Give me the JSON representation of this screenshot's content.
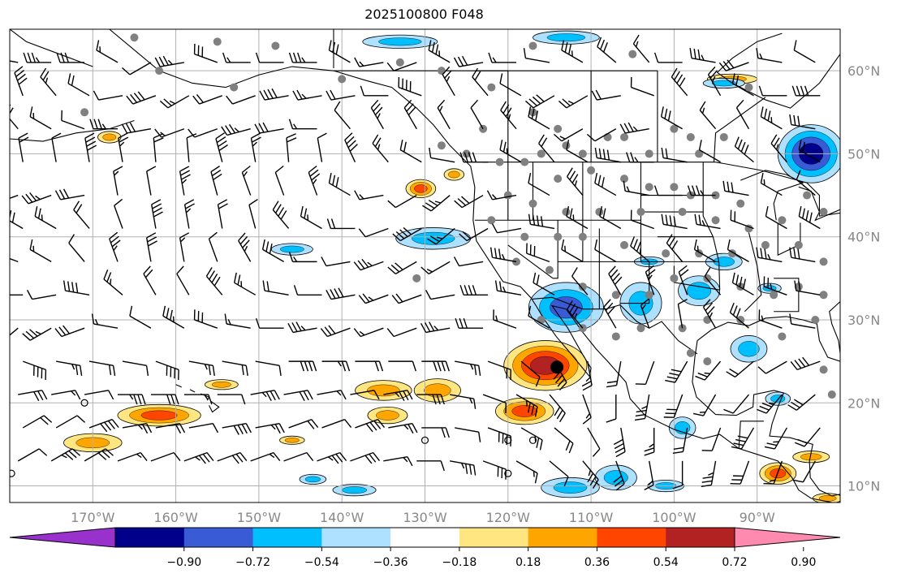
{
  "title": "2025100800 F048",
  "map": {
    "lon_min": -180,
    "lon_max": -80,
    "lat_min": 8,
    "lat_max": 65,
    "lon_ticks": [
      {
        "value": -170,
        "label": "170°W"
      },
      {
        "value": -160,
        "label": "160°W"
      },
      {
        "value": -150,
        "label": "150°W"
      },
      {
        "value": -140,
        "label": "140°W"
      },
      {
        "value": -130,
        "label": "130°W"
      },
      {
        "value": -120,
        "label": "120°W"
      },
      {
        "value": -110,
        "label": "110°W"
      },
      {
        "value": -100,
        "label": "100°W"
      },
      {
        "value": -90,
        "label": "90°W"
      }
    ],
    "lat_ticks": [
      {
        "value": 60,
        "label": "60°N"
      },
      {
        "value": 50,
        "label": "50°N"
      },
      {
        "value": 40,
        "label": "40°N"
      },
      {
        "value": 30,
        "label": "30°N"
      },
      {
        "value": 20,
        "label": "20°N"
      },
      {
        "value": 10,
        "label": "10°N"
      }
    ],
    "grid": true,
    "tick_label_color": "#888888"
  },
  "colorbar": {
    "colors": [
      "#9932cc",
      "#00008b",
      "#3a5bd6",
      "#00bfff",
      "#aee0ff",
      "#ffffff",
      "#ffe680",
      "#ffa500",
      "#ff4500",
      "#b22222",
      "#ff8ab0"
    ],
    "labels": [
      "−0.90",
      "−0.72",
      "−0.54",
      "−0.36",
      "−0.18",
      "0.18",
      "0.36",
      "0.54",
      "0.72",
      "0.90"
    ],
    "extend": "both"
  },
  "chart_data": {
    "type": "map",
    "positive_regions": [
      {
        "lon": -115.5,
        "lat": 24.5,
        "rx": 5,
        "ry": 3,
        "level": 0.72
      },
      {
        "lon": -118,
        "lat": 19,
        "rx": 3.5,
        "ry": 1.6,
        "level": 0.54
      },
      {
        "lon": -128.5,
        "lat": 21.5,
        "rx": 2.8,
        "ry": 1.4,
        "level": 0.36
      },
      {
        "lon": -135,
        "lat": 21.5,
        "rx": 3.4,
        "ry": 1.2,
        "level": 0.36
      },
      {
        "lon": -134.5,
        "lat": 18.5,
        "rx": 2.4,
        "ry": 1.0,
        "level": 0.36
      },
      {
        "lon": -162,
        "lat": 18.5,
        "rx": 5,
        "ry": 1.3,
        "level": 0.54
      },
      {
        "lon": -170,
        "lat": 15.2,
        "rx": 3.5,
        "ry": 1.1,
        "level": 0.36
      },
      {
        "lon": -154.5,
        "lat": 22.2,
        "rx": 2,
        "ry": 0.6,
        "level": 0.36
      },
      {
        "lon": -130.5,
        "lat": 45.8,
        "rx": 1.8,
        "ry": 1.1,
        "level": 0.54
      },
      {
        "lon": -126.5,
        "lat": 47.5,
        "rx": 1.2,
        "ry": 0.7,
        "level": 0.36
      },
      {
        "lon": -168,
        "lat": 52,
        "rx": 1.4,
        "ry": 0.7,
        "level": 0.36
      },
      {
        "lon": -146,
        "lat": 15.5,
        "rx": 1.5,
        "ry": 0.5,
        "level": 0.36
      },
      {
        "lon": -87.5,
        "lat": 11.5,
        "rx": 2.2,
        "ry": 1.3,
        "level": 0.54
      },
      {
        "lon": -93,
        "lat": 59,
        "rx": 3,
        "ry": 0.6,
        "level": 0.36
      },
      {
        "lon": -81.5,
        "lat": 8.5,
        "rx": 1.8,
        "ry": 0.6,
        "level": 0.36
      },
      {
        "lon": -83.5,
        "lat": 13.5,
        "rx": 2.2,
        "ry": 0.7,
        "level": 0.36
      }
    ],
    "negative_regions": [
      {
        "lon": -113,
        "lat": 31.5,
        "rx": 4.5,
        "ry": 3,
        "level": -0.54
      },
      {
        "lon": -104,
        "lat": 32,
        "rx": 2.5,
        "ry": 2.5,
        "level": -0.36
      },
      {
        "lon": -97,
        "lat": 33.5,
        "rx": 2.5,
        "ry": 1.8,
        "level": -0.36
      },
      {
        "lon": -91,
        "lat": 26.5,
        "rx": 2.2,
        "ry": 1.6,
        "level": -0.36
      },
      {
        "lon": -87.5,
        "lat": 20.5,
        "rx": 1.5,
        "ry": 0.8,
        "level": -0.36
      },
      {
        "lon": -83.5,
        "lat": 50,
        "rx": 4,
        "ry": 3.5,
        "level": -0.72
      },
      {
        "lon": -129,
        "lat": 39.8,
        "rx": 4.5,
        "ry": 1.3,
        "level": -0.36
      },
      {
        "lon": -146,
        "lat": 38.5,
        "rx": 2.5,
        "ry": 0.7,
        "level": -0.36
      },
      {
        "lon": -133,
        "lat": 63.5,
        "rx": 4.5,
        "ry": 0.8,
        "level": -0.36
      },
      {
        "lon": -113,
        "lat": 64,
        "rx": 4,
        "ry": 0.8,
        "level": -0.36
      },
      {
        "lon": -112.5,
        "lat": 9.8,
        "rx": 3.5,
        "ry": 1.2,
        "level": -0.36
      },
      {
        "lon": -107,
        "lat": 11,
        "rx": 2.5,
        "ry": 1.5,
        "level": -0.36
      },
      {
        "lon": -101,
        "lat": 10,
        "rx": 2.2,
        "ry": 0.7,
        "level": -0.36
      },
      {
        "lon": -138.5,
        "lat": 9.5,
        "rx": 2.6,
        "ry": 0.7,
        "level": -0.36
      },
      {
        "lon": -143.5,
        "lat": 10.8,
        "rx": 1.6,
        "ry": 0.6,
        "level": -0.36
      },
      {
        "lon": -94,
        "lat": 58.5,
        "rx": 2.5,
        "ry": 0.6,
        "level": -0.36
      },
      {
        "lon": -94,
        "lat": 37,
        "rx": 2.2,
        "ry": 1.0,
        "level": -0.36
      },
      {
        "lon": -99,
        "lat": 17,
        "rx": 1.6,
        "ry": 1.3,
        "level": -0.36
      },
      {
        "lon": -103,
        "lat": 37,
        "rx": 1.8,
        "ry": 0.6,
        "level": -0.36
      },
      {
        "lon": -88.5,
        "lat": 33.8,
        "rx": 1.4,
        "ry": 0.6,
        "level": -0.36
      }
    ],
    "station_markers": [
      [
        -165,
        64
      ],
      [
        -171,
        55
      ],
      [
        -162,
        60
      ],
      [
        -155,
        63.5
      ],
      [
        -148,
        63
      ],
      [
        -153,
        58
      ],
      [
        -140,
        59
      ],
      [
        -133,
        61
      ],
      [
        -128,
        60
      ],
      [
        -122,
        58
      ],
      [
        -117,
        63
      ],
      [
        -105,
        62
      ],
      [
        -123,
        53
      ],
      [
        -117,
        55
      ],
      [
        -114,
        53
      ],
      [
        -113,
        51
      ],
      [
        -111,
        50
      ],
      [
        -108,
        52
      ],
      [
        -106,
        52
      ],
      [
        -103,
        50
      ],
      [
        -100,
        53
      ],
      [
        -98,
        52
      ],
      [
        -97,
        50
      ],
      [
        -94,
        52
      ],
      [
        -91,
        58
      ],
      [
        -125,
        50
      ],
      [
        -128,
        51
      ],
      [
        -121,
        49
      ],
      [
        -118,
        49
      ],
      [
        -116,
        50
      ],
      [
        -114,
        47
      ],
      [
        -110,
        48
      ],
      [
        -106,
        47
      ],
      [
        -103,
        46
      ],
      [
        -100,
        46
      ],
      [
        -98,
        45
      ],
      [
        -95,
        45
      ],
      [
        -92,
        44
      ],
      [
        -120,
        45
      ],
      [
        -117,
        44
      ],
      [
        -113,
        43
      ],
      [
        -109,
        43
      ],
      [
        -104,
        43
      ],
      [
        -99,
        43
      ],
      [
        -95,
        42
      ],
      [
        -91,
        41
      ],
      [
        -87,
        42
      ],
      [
        -84,
        45
      ],
      [
        -82,
        43
      ],
      [
        -122,
        42
      ],
      [
        -118,
        40
      ],
      [
        -114,
        40
      ],
      [
        -111,
        40
      ],
      [
        -106,
        39
      ],
      [
        -101,
        38
      ],
      [
        -97,
        38
      ],
      [
        -93,
        38
      ],
      [
        -89,
        39
      ],
      [
        -85,
        39
      ],
      [
        -82,
        37
      ],
      [
        -119,
        37
      ],
      [
        -115,
        36
      ],
      [
        -111,
        34
      ],
      [
        -107,
        33
      ],
      [
        -103,
        33
      ],
      [
        -100,
        35
      ],
      [
        -96,
        35
      ],
      [
        -92,
        34
      ],
      [
        -88,
        33
      ],
      [
        -85,
        34
      ],
      [
        -82,
        33
      ],
      [
        -116,
        30
      ],
      [
        -111,
        29
      ],
      [
        -107,
        28
      ],
      [
        -104,
        29
      ],
      [
        -99,
        29
      ],
      [
        -96,
        30
      ],
      [
        -92,
        30
      ],
      [
        -87,
        28
      ],
      [
        -83,
        30
      ],
      [
        -98,
        26
      ],
      [
        -96,
        25
      ],
      [
        -82,
        24
      ],
      [
        -81,
        21
      ],
      [
        -131,
        35
      ]
    ],
    "wind_barbs": {
      "lon_start": -179,
      "lon_step": 4,
      "lat_start": 61,
      "lat_step": 4,
      "rows": [
        [
          280,
          270,
          270,
          300,
          240,
          260,
          290,
          270,
          270,
          270,
          300,
          260,
          250,
          300,
          260,
          270,
          280,
          300,
          310,
          320,
          270,
          280,
          250,
          280,
          300
        ],
        [
          340,
          320,
          300,
          260,
          250,
          240,
          250,
          250,
          260,
          260,
          260,
          270,
          290,
          330,
          320,
          300,
          240,
          240,
          260,
          290,
          320,
          330,
          300,
          270,
          270
        ],
        [
          320,
          300,
          290,
          270,
          260,
          250,
          250,
          255,
          260,
          270,
          320,
          330,
          330,
          330,
          330,
          320,
          300,
          240,
          240,
          260,
          300,
          320,
          330,
          300,
          280
        ],
        [
          350,
          350,
          350,
          350,
          355,
          355,
          345,
          350,
          355,
          350,
          335,
          320,
          300,
          280,
          270,
          300,
          320,
          300,
          280,
          270,
          280,
          300,
          310,
          320,
          300
        ],
        [
          250,
          250,
          260,
          350,
          350,
          350,
          345,
          340,
          340,
          340,
          300,
          260,
          240,
          230,
          240,
          260,
          300,
          320,
          300,
          280,
          270,
          270,
          280,
          300,
          310
        ],
        [
          300,
          300,
          320,
          340,
          350,
          350,
          350,
          345,
          320,
          300,
          270,
          250,
          240,
          230,
          240,
          260,
          280,
          300,
          300,
          290,
          280,
          280,
          290,
          300,
          300
        ],
        [
          290,
          300,
          320,
          340,
          350,
          350,
          340,
          330,
          300,
          270,
          260,
          250,
          240,
          240,
          260,
          280,
          290,
          300,
          300,
          310,
          320,
          300,
          300,
          280,
          280
        ],
        [
          270,
          260,
          280,
          310,
          330,
          330,
          320,
          300,
          280,
          270,
          260,
          250,
          250,
          260,
          270,
          280,
          300,
          320,
          330,
          340,
          340,
          320,
          300,
          290,
          280
        ],
        [
          230,
          240,
          250,
          280,
          300,
          300,
          290,
          280,
          270,
          260,
          250,
          250,
          250,
          260,
          270,
          290,
          300,
          320,
          330,
          340,
          350,
          330,
          310,
          290,
          280
        ],
        [
          110,
          100,
          100,
          100,
          110,
          100,
          100,
          100,
          90,
          90,
          90,
          90,
          90,
          100,
          110,
          130,
          150,
          170,
          190,
          200,
          210,
          220,
          230,
          240,
          250
        ],
        [
          80,
          80,
          80,
          90,
          90,
          90,
          90,
          80,
          80,
          80,
          80,
          80,
          90,
          100,
          110,
          120,
          140,
          160,
          180,
          190,
          200,
          210,
          220,
          220,
          230
        ],
        [
          60,
          60,
          70,
          80,
          80,
          80,
          80,
          80,
          70,
          70,
          70,
          80,
          90,
          100,
          110,
          120,
          130,
          150,
          170,
          180,
          190,
          200,
          210,
          210,
          220
        ],
        [
          60,
          60,
          60,
          70,
          70,
          70,
          70,
          70,
          70,
          70,
          70,
          80,
          90,
          100,
          110,
          120,
          130,
          140,
          160,
          170,
          180,
          190,
          200,
          200,
          210
        ]
      ]
    }
  }
}
